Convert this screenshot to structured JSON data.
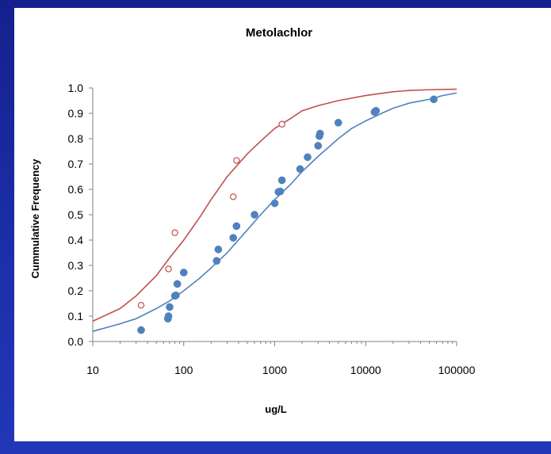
{
  "chart_data": {
    "type": "scatter",
    "title": "Metolachlor",
    "xlabel": "ug/L",
    "ylabel": "Cummulative Frequency",
    "x_scale": "log",
    "xlim": [
      10,
      100000
    ],
    "ylim": [
      0.0,
      1.0
    ],
    "x_ticks": [
      "10",
      "100",
      "1000",
      "10000",
      "100000"
    ],
    "y_ticks": [
      "0.0",
      "0.1",
      "0.2",
      "0.3",
      "0.4",
      "0.5",
      "0.6",
      "0.7",
      "0.8",
      "0.9",
      "1.0"
    ],
    "grid": false,
    "legend": "none",
    "series": [
      {
        "style": "line",
        "color": "#c0504d",
        "x": [
          10,
          20,
          30,
          50,
          70,
          100,
          150,
          200,
          300,
          500,
          700,
          1000,
          1500,
          2000,
          3000,
          5000,
          10000,
          20000,
          30000,
          50000,
          100000
        ],
        "y": [
          0.08,
          0.13,
          0.18,
          0.26,
          0.33,
          0.4,
          0.49,
          0.56,
          0.65,
          0.74,
          0.79,
          0.84,
          0.88,
          0.91,
          0.93,
          0.95,
          0.97,
          0.985,
          0.99,
          0.993,
          0.995
        ]
      },
      {
        "style": "open-marker",
        "color": "#c0504d",
        "x": [
          34,
          68,
          80,
          350,
          380,
          1200
        ],
        "y": [
          0.143,
          0.286,
          0.429,
          0.571,
          0.714,
          0.857
        ]
      },
      {
        "style": "line",
        "color": "#4f81bd",
        "x": [
          10,
          20,
          30,
          50,
          70,
          100,
          150,
          200,
          300,
          500,
          700,
          1000,
          1500,
          2000,
          3000,
          5000,
          7000,
          10000,
          15000,
          20000,
          30000,
          50000,
          70000,
          100000
        ],
        "y": [
          0.04,
          0.07,
          0.09,
          0.13,
          0.16,
          0.2,
          0.25,
          0.29,
          0.35,
          0.44,
          0.5,
          0.56,
          0.62,
          0.67,
          0.73,
          0.8,
          0.84,
          0.87,
          0.9,
          0.92,
          0.94,
          0.955,
          0.97,
          0.98
        ]
      },
      {
        "style": "filled-marker",
        "color": "#4f81bd",
        "x": [
          34,
          67,
          68,
          70,
          80,
          82,
          85,
          100,
          230,
          240,
          350,
          380,
          600,
          1000,
          1100,
          1150,
          1200,
          1900,
          2300,
          3000,
          3100,
          3150,
          5000,
          12500,
          13000,
          56000
        ],
        "y": [
          0.045,
          0.09,
          0.1,
          0.136,
          0.18,
          0.182,
          0.227,
          0.272,
          0.318,
          0.363,
          0.409,
          0.455,
          0.5,
          0.545,
          0.59,
          0.592,
          0.636,
          0.68,
          0.727,
          0.772,
          0.81,
          0.82,
          0.863,
          0.905,
          0.91,
          0.955
        ]
      }
    ]
  }
}
